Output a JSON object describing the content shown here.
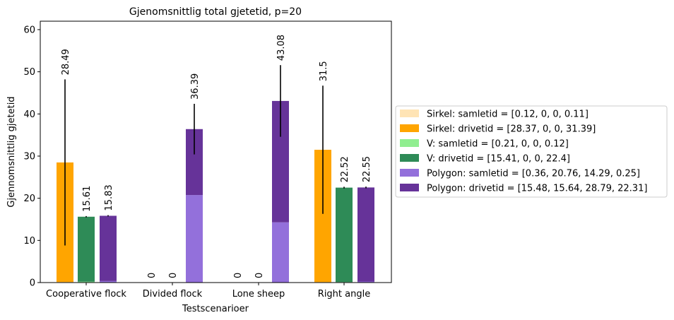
{
  "chart_data": {
    "type": "bar",
    "title": "Gjenomsnittlig total gjetetid, p=20",
    "xlabel": "Testscenarioer",
    "ylabel": "Gjennomsnittlig gjetetid",
    "ylim": [
      0,
      62
    ],
    "yticks": [
      0,
      10,
      20,
      30,
      40,
      50,
      60
    ],
    "categories": [
      "Cooperative flock",
      "Divided flock",
      "Lone sheep",
      "Right angle"
    ],
    "legend_position": "right",
    "series": [
      {
        "name": "Sirkel: samletid = [0.12, 0, 0, 0.11]",
        "group": "Sirkel",
        "part": "samletid",
        "values": [
          0.12,
          0,
          0,
          0.11
        ],
        "color": "#ffe4b5"
      },
      {
        "name": "Sirkel: drivetid = [28.37, 0, 0, 31.39]",
        "group": "Sirkel",
        "part": "drivetid",
        "values": [
          28.37,
          0,
          0,
          31.39
        ],
        "color": "#ffa500"
      },
      {
        "name": "V: samletid = [0.21, 0, 0, 0.12]",
        "group": "V",
        "part": "samletid",
        "values": [
          0.21,
          0,
          0,
          0.12
        ],
        "color": "#90ee90"
      },
      {
        "name": "V: drivetid = [15.41, 0, 0, 22.4]",
        "group": "V",
        "part": "drivetid",
        "values": [
          15.41,
          0,
          0,
          22.4
        ],
        "color": "#2e8b57"
      },
      {
        "name": "Polygon: samletid = [0.36, 20.76, 14.29, 0.25]",
        "group": "Polygon",
        "part": "samletid",
        "values": [
          0.36,
          20.76,
          14.29,
          0.25
        ],
        "color": "#9370db"
      },
      {
        "name": "Polygon: drivetid = [15.48, 15.64, 28.79, 22.31]",
        "group": "Polygon",
        "part": "drivetid",
        "values": [
          15.48,
          15.64,
          28.79,
          22.31
        ],
        "color": "#663399"
      }
    ],
    "groups": [
      "Sirkel",
      "V",
      "Polygon"
    ],
    "totals": {
      "Sirkel": [
        "28.49",
        "0",
        "0",
        "31.5"
      ],
      "V": [
        "15.61",
        "0",
        "0",
        "22.52"
      ],
      "Polygon": [
        "15.83",
        "36.39",
        "43.08",
        "22.55"
      ]
    },
    "errors": {
      "Sirkel": [
        19.7,
        0,
        0,
        15.2
      ],
      "V": [
        0.15,
        0,
        0,
        0.2
      ],
      "Polygon": [
        0.15,
        6.0,
        8.5,
        0.2
      ]
    }
  }
}
